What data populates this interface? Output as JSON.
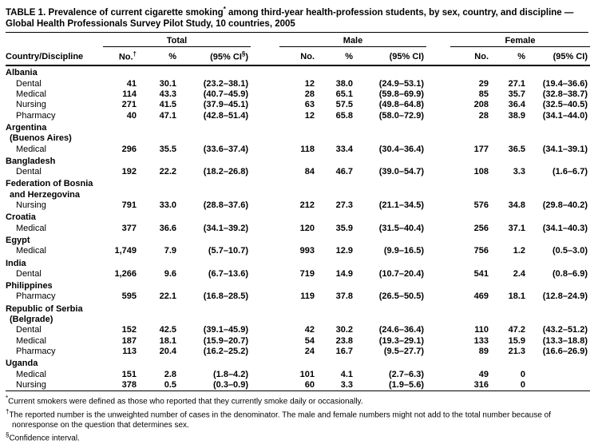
{
  "title": {
    "pre": "TABLE 1. Prevalence of current cigarette smoking",
    "mark": "*",
    "post": " among third-year health-profession students, by sex, country, and discipline — Global Health Professionals Survey Pilot Study, 10 countries, 2005"
  },
  "table": {
    "country_col": "Country/Discipline",
    "groups": [
      {
        "label": "Total",
        "no": "No.",
        "no_mark": "†",
        "pct": "%",
        "ci_pre": "(95% CI",
        "ci_mark": "§",
        "ci_post": ")"
      },
      {
        "label": "Male",
        "no": "No.",
        "no_mark": "",
        "pct": "%",
        "ci_pre": "(95% CI",
        "ci_mark": "",
        "ci_post": ")"
      },
      {
        "label": "Female",
        "no": "No.",
        "no_mark": "",
        "pct": "%",
        "ci_pre": "(95% CI",
        "ci_mark": "",
        "ci_post": ")"
      }
    ],
    "sections": [
      {
        "country": [
          "Albania"
        ],
        "rows": [
          {
            "discipline": "Dental",
            "cells": [
              "41",
              "30.1",
              "(23.2–38.1)",
              "12",
              "38.0",
              "(24.9–53.1)",
              "29",
              "27.1",
              "(19.4–36.6)"
            ]
          },
          {
            "discipline": "Medical",
            "cells": [
              "114",
              "43.3",
              "(40.7–45.9)",
              "28",
              "65.1",
              "(59.8–69.9)",
              "85",
              "35.7",
              "(32.8–38.7)"
            ]
          },
          {
            "discipline": "Nursing",
            "cells": [
              "271",
              "41.5",
              "(37.9–45.1)",
              "63",
              "57.5",
              "(49.8–64.8)",
              "208",
              "36.4",
              "(32.5–40.5)"
            ]
          },
          {
            "discipline": "Pharmacy",
            "cells": [
              "40",
              "47.1",
              "(42.8–51.4)",
              "12",
              "65.8",
              "(58.0–72.9)",
              "28",
              "38.9",
              "(34.1–44.0)"
            ]
          }
        ]
      },
      {
        "country": [
          "Argentina",
          "(Buenos Aires)"
        ],
        "rows": [
          {
            "discipline": "Medical",
            "cells": [
              "296",
              "35.5",
              "(33.6–37.4)",
              "118",
              "33.4",
              "(30.4–36.4)",
              "177",
              "36.5",
              "(34.1–39.1)"
            ]
          }
        ]
      },
      {
        "country": [
          "Bangladesh"
        ],
        "rows": [
          {
            "discipline": "Dental",
            "cells": [
              "192",
              "22.2",
              "(18.2–26.8)",
              "84",
              "46.7",
              "(39.0–54.7)",
              "108",
              "3.3",
              "(1.6–6.7)"
            ]
          }
        ]
      },
      {
        "country": [
          "Federation of Bosnia",
          "and Herzegovina"
        ],
        "rows": [
          {
            "discipline": "Nursing",
            "cells": [
              "791",
              "33.0",
              "(28.8–37.6)",
              "212",
              "27.3",
              "(21.1–34.5)",
              "576",
              "34.8",
              "(29.8–40.2)"
            ]
          }
        ]
      },
      {
        "country": [
          "Croatia"
        ],
        "rows": [
          {
            "discipline": "Medical",
            "cells": [
              "377",
              "36.6",
              "(34.1–39.2)",
              "120",
              "35.9",
              "(31.5–40.4)",
              "256",
              "37.1",
              "(34.1–40.3)"
            ]
          }
        ]
      },
      {
        "country": [
          "Egypt"
        ],
        "rows": [
          {
            "discipline": "Medical",
            "cells": [
              "1,749",
              "7.9",
              "(5.7–10.7)",
              "993",
              "12.9",
              "(9.9–16.5)",
              "756",
              "1.2",
              "(0.5–3.0)"
            ]
          }
        ]
      },
      {
        "country": [
          "India"
        ],
        "rows": [
          {
            "discipline": "Dental",
            "cells": [
              "1,266",
              "9.6",
              "(6.7–13.6)",
              "719",
              "14.9",
              "(10.7–20.4)",
              "541",
              "2.4",
              "(0.8–6.9)"
            ]
          }
        ]
      },
      {
        "country": [
          "Philippines"
        ],
        "rows": [
          {
            "discipline": "Pharmacy",
            "cells": [
              "595",
              "22.1",
              "(16.8–28.5)",
              "119",
              "37.8",
              "(26.5–50.5)",
              "469",
              "18.1",
              "(12.8–24.9)"
            ]
          }
        ]
      },
      {
        "country": [
          "Republic of Serbia",
          "(Belgrade)"
        ],
        "rows": [
          {
            "discipline": "Dental",
            "cells": [
              "152",
              "42.5",
              "(39.1–45.9)",
              "42",
              "30.2",
              "(24.6–36.4)",
              "110",
              "47.2",
              "(43.2–51.2)"
            ]
          },
          {
            "discipline": "Medical",
            "cells": [
              "187",
              "18.1",
              "(15.9–20.7)",
              "54",
              "23.8",
              "(19.3–29.1)",
              "133",
              "15.9",
              "(13.3–18.8)"
            ]
          },
          {
            "discipline": "Pharmacy",
            "cells": [
              "113",
              "20.4",
              "(16.2–25.2)",
              "24",
              "16.7",
              "(9.5–27.7)",
              "89",
              "21.3",
              "(16.6–26.9)"
            ]
          }
        ]
      },
      {
        "country": [
          "Uganda"
        ],
        "rows": [
          {
            "discipline": "Medical",
            "cells": [
              "151",
              "2.8",
              "(1.8–4.2)",
              "101",
              "4.1",
              "(2.7–6.3)",
              "49",
              "0",
              ""
            ]
          },
          {
            "discipline": "Nursing",
            "cells": [
              "378",
              "0.5",
              "(0.3–0.9)",
              "60",
              "3.3",
              "(1.9–5.6)",
              "316",
              "0",
              ""
            ]
          }
        ]
      }
    ]
  },
  "footnotes": [
    {
      "marker": "*",
      "text": "Current smokers were defined as those who reported that they currently smoke daily or occasionally."
    },
    {
      "marker": "†",
      "text": "The reported number is the unweighted number of cases in the denominator.  The male and female numbers might not add to the total number because of nonresponse on the question that determines sex."
    },
    {
      "marker": "§",
      "text": "Confidence interval."
    }
  ]
}
